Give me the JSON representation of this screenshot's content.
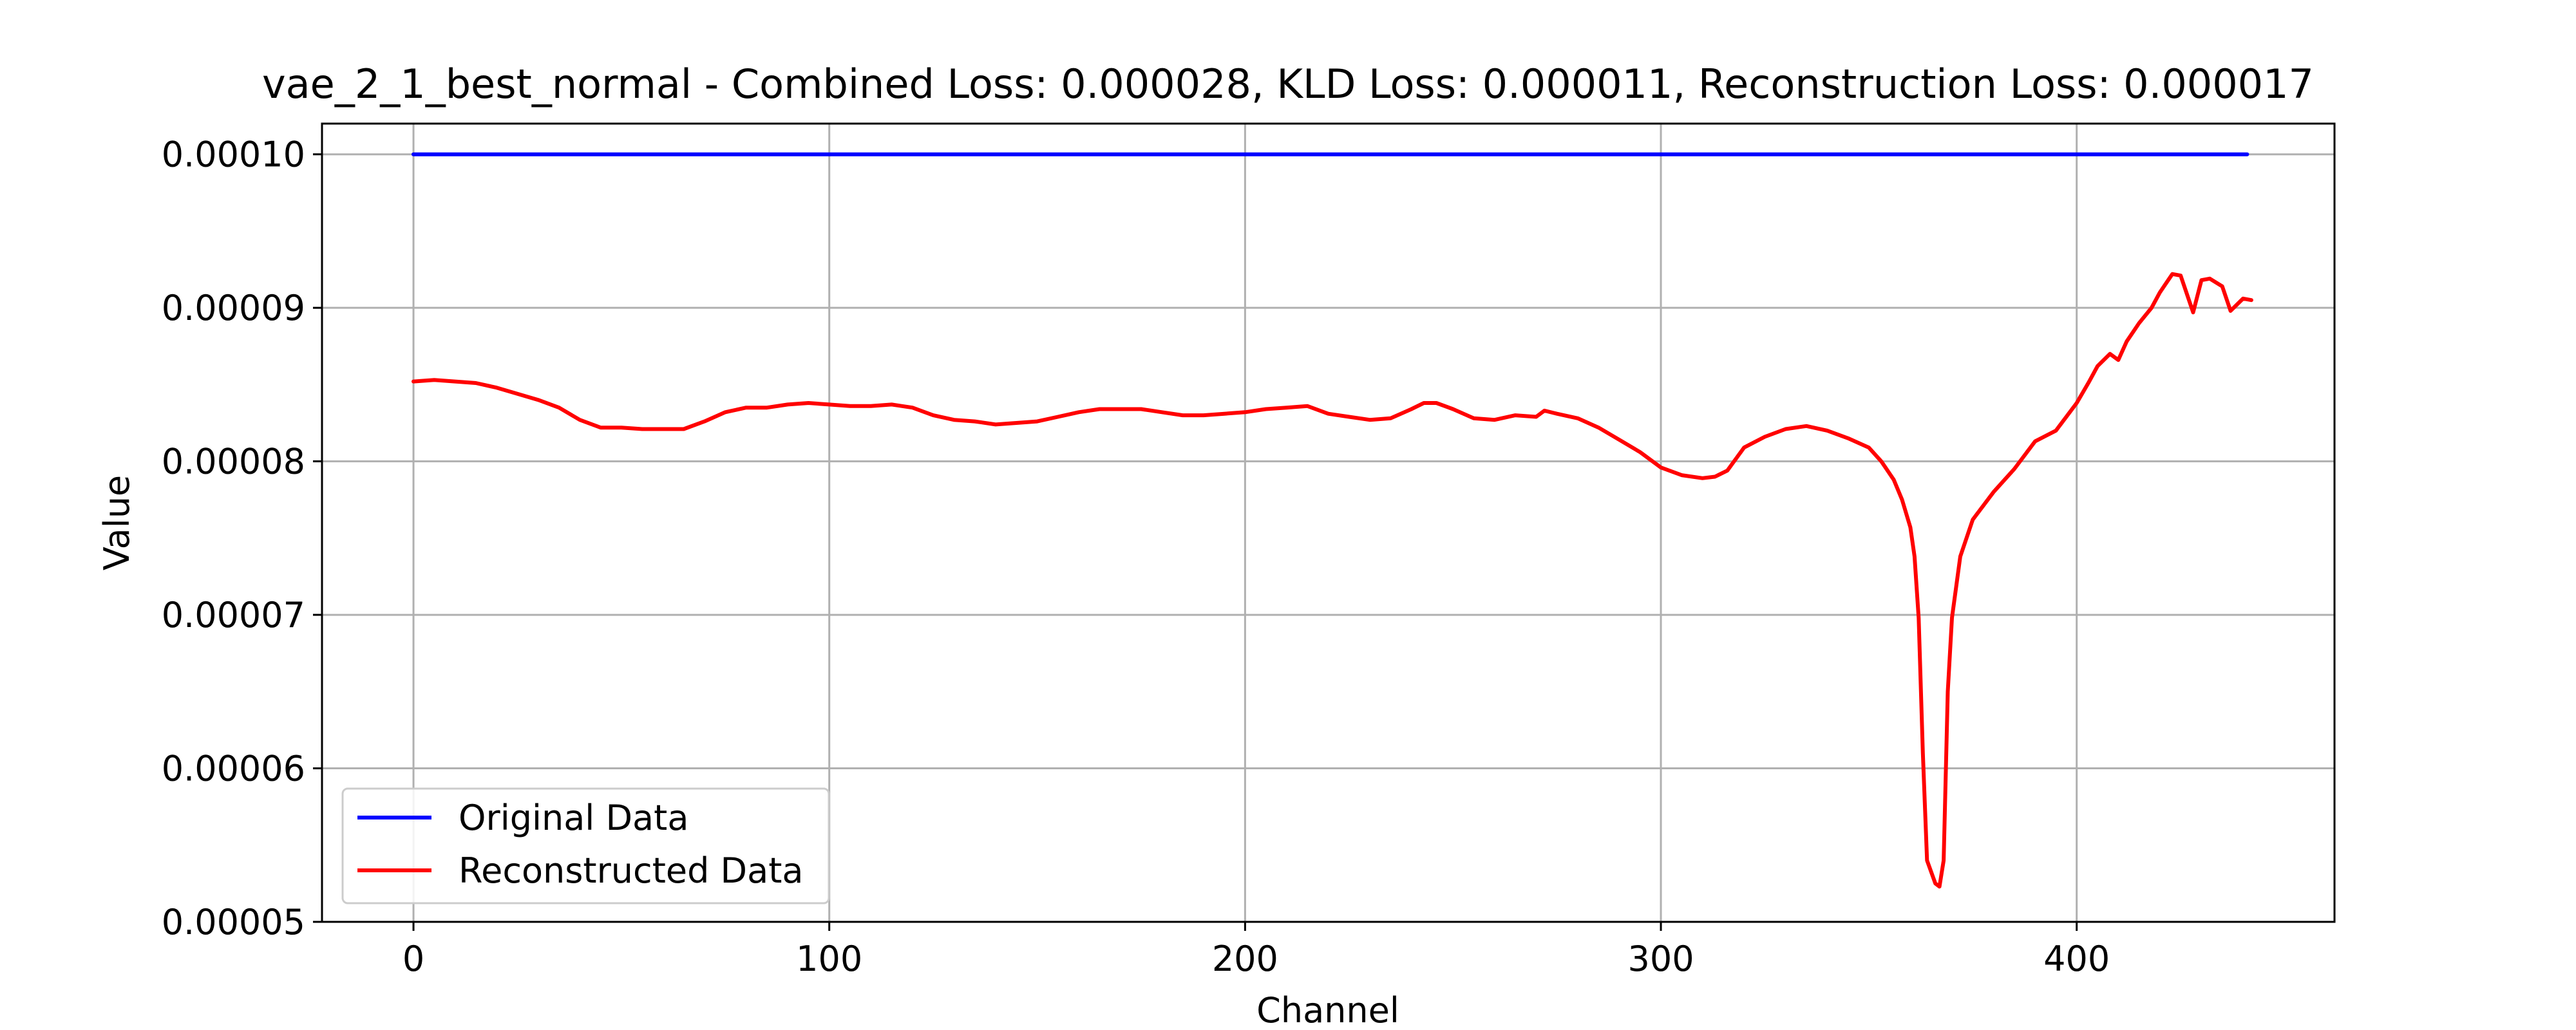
{
  "chart_data": {
    "type": "line",
    "title": "vae_2_1_best_normal - Combined Loss: 0.000028, KLD Loss: 0.000011, Reconstruction Loss: 0.000017",
    "xlabel": "Channel",
    "ylabel": "Value",
    "xlim": [
      -22,
      462
    ],
    "ylim": [
      5e-05,
      0.000102
    ],
    "x_ticks": [
      0,
      100,
      200,
      300,
      400
    ],
    "x_tick_labels": [
      "0",
      "100",
      "200",
      "300",
      "400"
    ],
    "y_ticks": [
      5e-05,
      6e-05,
      7e-05,
      8e-05,
      9e-05,
      0.0001
    ],
    "y_tick_labels": [
      "0.00005",
      "0.00006",
      "0.00007",
      "0.00008",
      "0.00009",
      "0.00010"
    ],
    "grid": true,
    "legend_position": "lower-left",
    "series": [
      {
        "name": "Original Data",
        "color": "#0000ff",
        "x": [
          0,
          441
        ],
        "y": [
          0.0001,
          0.0001
        ]
      },
      {
        "name": "Reconstructed Data",
        "color": "#ff0000",
        "x": [
          0,
          5,
          10,
          15,
          20,
          25,
          30,
          35,
          40,
          45,
          50,
          55,
          60,
          65,
          70,
          75,
          80,
          85,
          90,
          95,
          100,
          105,
          110,
          115,
          120,
          125,
          130,
          135,
          140,
          145,
          150,
          155,
          160,
          165,
          170,
          175,
          180,
          185,
          190,
          195,
          200,
          205,
          210,
          215,
          220,
          225,
          230,
          235,
          240,
          243,
          246,
          250,
          255,
          260,
          265,
          270,
          272,
          275,
          280,
          285,
          290,
          295,
          300,
          305,
          310,
          313,
          316,
          320,
          325,
          330,
          335,
          340,
          345,
          350,
          353,
          356,
          358,
          360,
          361,
          362,
          363,
          364,
          366,
          367,
          368,
          369,
          370,
          372,
          375,
          380,
          385,
          390,
          395,
          400,
          403,
          405,
          408,
          410,
          412,
          415,
          418,
          420,
          423,
          425,
          428,
          430,
          432,
          435,
          437,
          440,
          442
        ],
        "y": [
          8.52e-05,
          8.53e-05,
          8.52e-05,
          8.51e-05,
          8.48e-05,
          8.44e-05,
          8.4e-05,
          8.35e-05,
          8.27e-05,
          8.22e-05,
          8.22e-05,
          8.21e-05,
          8.21e-05,
          8.21e-05,
          8.26e-05,
          8.32e-05,
          8.35e-05,
          8.35e-05,
          8.37e-05,
          8.38e-05,
          8.37e-05,
          8.36e-05,
          8.36e-05,
          8.37e-05,
          8.35e-05,
          8.3e-05,
          8.27e-05,
          8.26e-05,
          8.24e-05,
          8.25e-05,
          8.26e-05,
          8.29e-05,
          8.32e-05,
          8.34e-05,
          8.34e-05,
          8.34e-05,
          8.32e-05,
          8.3e-05,
          8.3e-05,
          8.31e-05,
          8.32e-05,
          8.34e-05,
          8.35e-05,
          8.36e-05,
          8.31e-05,
          8.29e-05,
          8.27e-05,
          8.28e-05,
          8.34e-05,
          8.38e-05,
          8.38e-05,
          8.34e-05,
          8.28e-05,
          8.27e-05,
          8.3e-05,
          8.29e-05,
          8.33e-05,
          8.31e-05,
          8.28e-05,
          8.22e-05,
          8.14e-05,
          8.06e-05,
          7.96e-05,
          7.91e-05,
          7.89e-05,
          7.9e-05,
          7.94e-05,
          8.09e-05,
          8.16e-05,
          8.21e-05,
          8.23e-05,
          8.2e-05,
          8.15e-05,
          8.09e-05,
          8e-05,
          7.88e-05,
          7.75e-05,
          7.57e-05,
          7.38e-05,
          6.98e-05,
          6.1e-05,
          5.4e-05,
          5.25e-05,
          5.23e-05,
          5.4e-05,
          6.5e-05,
          6.98e-05,
          7.38e-05,
          7.62e-05,
          7.8e-05,
          7.95e-05,
          8.13e-05,
          8.2e-05,
          8.38e-05,
          8.52e-05,
          8.62e-05,
          8.7e-05,
          8.66e-05,
          8.78e-05,
          8.9e-05,
          9e-05,
          9.1e-05,
          9.22e-05,
          9.21e-05,
          8.97e-05,
          9.18e-05,
          9.19e-05,
          9.14e-05,
          8.98e-05,
          9.06e-05,
          9.05e-05
        ]
      }
    ]
  }
}
